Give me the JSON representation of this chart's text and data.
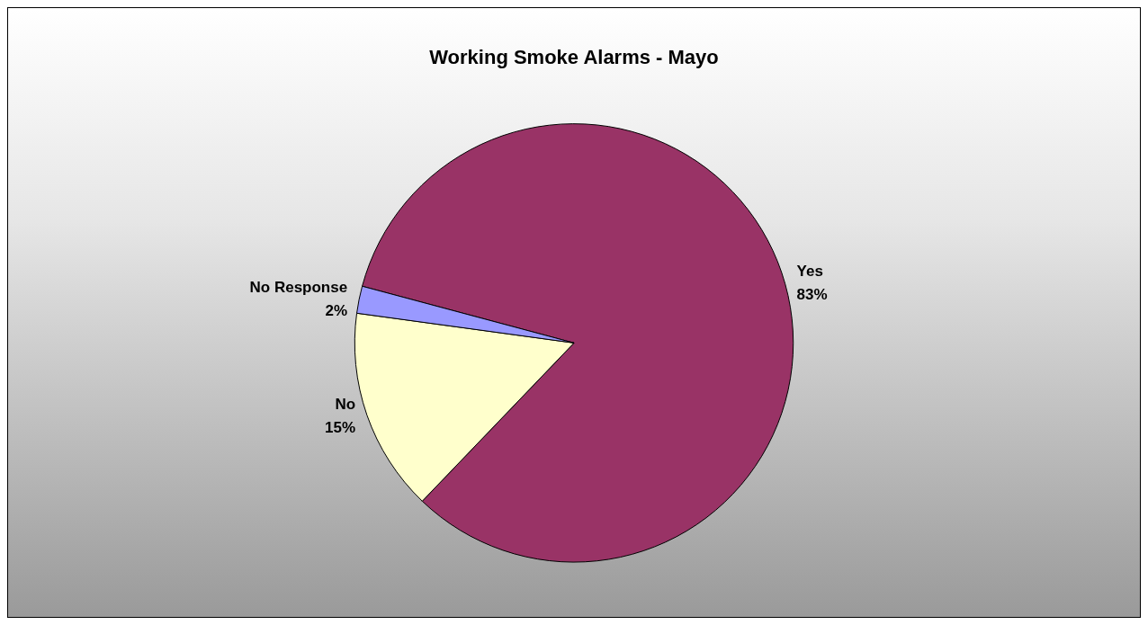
{
  "chart_data": {
    "type": "pie",
    "title": "Working Smoke Alarms - Mayo",
    "categories": [
      "Yes",
      "No",
      "No Response"
    ],
    "values": [
      83,
      15,
      2
    ],
    "colors": [
      "#993366",
      "#ffffcc",
      "#9999ff"
    ],
    "value_labels": [
      "83%",
      "15%",
      "2%"
    ]
  }
}
